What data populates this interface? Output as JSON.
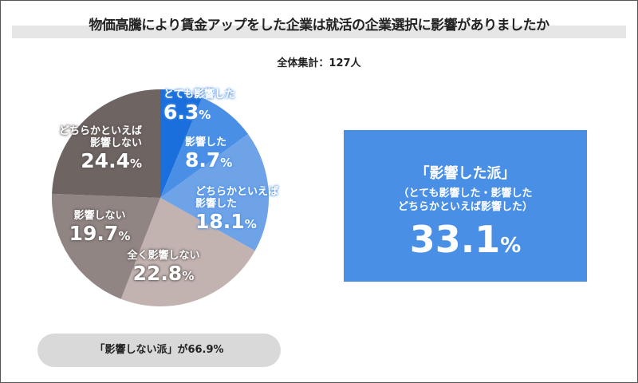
{
  "title": "物価高騰により賃金アップをした企業は就活の企業選択に影響がありましたか",
  "total": "全体集計：127人",
  "chart_data": {
    "type": "pie",
    "title": "物価高騰により賃金アップをした企業は就活の企業選択に影響がありましたか",
    "slices": [
      {
        "label": "とても影響した",
        "value": 6.3,
        "value_text": "6.3",
        "color": "#1a6fdc"
      },
      {
        "label": "影響した",
        "value": 8.7,
        "value_text": "8.7",
        "color": "#4a8fe6"
      },
      {
        "label": "どちらかといえば影響した",
        "value": 18.1,
        "value_text": "18.1",
        "color": "#6fa3e8"
      },
      {
        "label": "全く影響しない",
        "value": 22.8,
        "value_text": "22.8",
        "color": "#c2b3b1"
      },
      {
        "label": "影響しない",
        "value": 19.7,
        "value_text": "19.7",
        "color": "#918584"
      },
      {
        "label": "どちらかといえば影響しない",
        "value": 24.4,
        "value_text": "24.4",
        "color": "#6e6563"
      }
    ],
    "unit": "%"
  },
  "summary_box": {
    "heading": "「影響した派」",
    "sub1": "（とても影響した・影響した",
    "sub2": "どちらかといえば影響した）",
    "value": "33.1",
    "unit": "%"
  },
  "pill": "「影響しない派」が66.9%"
}
